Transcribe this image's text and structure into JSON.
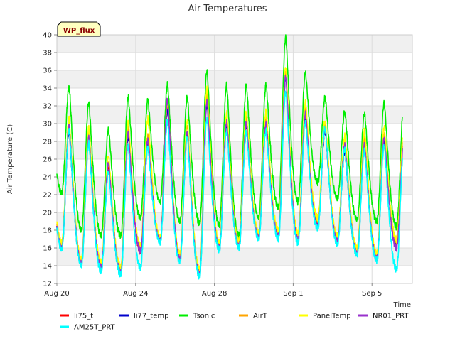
{
  "chart_data": {
    "type": "line",
    "title": "Air Temperatures",
    "xlabel": "Time",
    "ylabel": "Air Temperature (C)",
    "badge": "WP_flux",
    "xlim": [
      0,
      18.05
    ],
    "ylim": [
      12,
      40
    ],
    "yticks": [
      12,
      14,
      16,
      18,
      20,
      22,
      24,
      26,
      28,
      30,
      32,
      34,
      36,
      38,
      40
    ],
    "xticks": [
      {
        "day": 0,
        "label": "Aug 20"
      },
      {
        "day": 4,
        "label": "Aug 24"
      },
      {
        "day": 8,
        "label": "Aug 28"
      },
      {
        "day": 12,
        "label": "Sep 1"
      },
      {
        "day": 16,
        "label": "Sep 5"
      }
    ],
    "days": [
      "Aug 20",
      "Aug 21",
      "Aug 22",
      "Aug 23",
      "Aug 24",
      "Aug 25",
      "Aug 26",
      "Aug 27",
      "Aug 28",
      "Aug 29",
      "Aug 30",
      "Aug 31",
      "Sep 1",
      "Sep 2",
      "Sep 3",
      "Sep 4",
      "Sep 5",
      "Sep 6"
    ],
    "grid": true,
    "legend_position": "bottom",
    "series": [
      {
        "name": "li75_t",
        "color": "#ff0000",
        "min": [
          16.0,
          14.2,
          13.8,
          13.2,
          15.6,
          16.8,
          14.8,
          13.0,
          16.0,
          16.2,
          17.2,
          17.4,
          17.0,
          18.8,
          16.8,
          15.4,
          14.8,
          16.6
        ],
        "max": [
          29.6,
          28.6,
          25.2,
          29.0,
          28.0,
          32.0,
          29.2,
          32.8,
          30.0,
          30.2,
          30.2,
          35.6,
          31.0,
          29.6,
          27.4,
          27.8,
          28.4,
          28.6
        ]
      },
      {
        "name": "li77_temp",
        "color": "#0000cc",
        "min": [
          16.2,
          14.4,
          13.9,
          13.3,
          15.8,
          16.9,
          14.9,
          13.1,
          16.1,
          16.3,
          17.3,
          17.5,
          17.1,
          18.9,
          16.9,
          15.5,
          14.9,
          16.7
        ],
        "max": [
          29.2,
          28.2,
          24.8,
          28.6,
          27.6,
          31.6,
          28.8,
          32.2,
          29.6,
          29.8,
          29.8,
          35.2,
          30.6,
          29.2,
          27.0,
          27.4,
          28.0,
          28.2
        ]
      },
      {
        "name": "Tsonic",
        "color": "#00ee00",
        "min": [
          22.2,
          18.0,
          17.4,
          17.4,
          19.4,
          21.2,
          19.0,
          18.8,
          18.6,
          17.4,
          19.4,
          20.6,
          21.2,
          23.4,
          21.6,
          19.2,
          19.0,
          18.4
        ],
        "max": [
          34.2,
          32.4,
          29.4,
          33.0,
          32.6,
          34.4,
          33.0,
          36.0,
          34.4,
          34.4,
          34.4,
          39.8,
          35.8,
          33.0,
          31.4,
          31.2,
          32.4,
          32.4
        ]
      },
      {
        "name": "AirT",
        "color": "#ffa500",
        "min": [
          16.4,
          14.6,
          14.2,
          13.6,
          16.0,
          17.0,
          15.2,
          13.4,
          16.4,
          16.6,
          17.6,
          17.8,
          17.4,
          19.2,
          17.2,
          15.8,
          15.2,
          16.8
        ],
        "max": [
          30.0,
          29.0,
          25.8,
          29.6,
          28.6,
          32.4,
          29.8,
          33.4,
          30.6,
          30.6,
          30.8,
          36.0,
          31.6,
          30.0,
          28.0,
          28.4,
          28.8,
          29.0
        ]
      },
      {
        "name": "PanelTemp",
        "color": "#ffff00",
        "min": [
          16.6,
          14.8,
          14.4,
          13.8,
          16.2,
          17.2,
          15.4,
          13.6,
          16.6,
          16.8,
          17.8,
          18.0,
          17.6,
          19.4,
          17.4,
          16.0,
          15.4,
          17.0
        ],
        "max": [
          30.6,
          29.6,
          26.4,
          30.2,
          30.6,
          32.6,
          30.4,
          34.0,
          31.2,
          31.2,
          31.4,
          36.4,
          32.4,
          30.4,
          28.6,
          29.2,
          29.6,
          29.6
        ]
      },
      {
        "name": "NR01_PRT",
        "color": "#9932cc",
        "min": [
          16.0,
          14.3,
          13.8,
          13.2,
          15.7,
          16.8,
          14.8,
          13.0,
          16.0,
          16.2,
          17.2,
          17.3,
          16.9,
          18.4,
          16.8,
          15.4,
          14.8,
          16.0
        ],
        "max": [
          29.8,
          28.4,
          25.6,
          29.0,
          28.2,
          32.8,
          29.2,
          32.6,
          30.2,
          30.0,
          30.0,
          35.4,
          31.2,
          29.4,
          27.6,
          27.6,
          28.4,
          28.0
        ]
      },
      {
        "name": "AM25T_PRT",
        "color": "#00ffff",
        "min": [
          15.8,
          14.0,
          13.4,
          13.0,
          13.8,
          16.6,
          14.4,
          12.8,
          15.8,
          16.0,
          17.0,
          17.0,
          16.6,
          18.2,
          16.4,
          15.2,
          14.6,
          13.6
        ],
        "max": [
          29.4,
          27.8,
          24.6,
          27.6,
          27.4,
          30.4,
          28.6,
          30.6,
          29.2,
          29.0,
          29.2,
          33.6,
          30.2,
          29.6,
          27.2,
          27.0,
          27.6,
          27.6
        ]
      }
    ]
  }
}
